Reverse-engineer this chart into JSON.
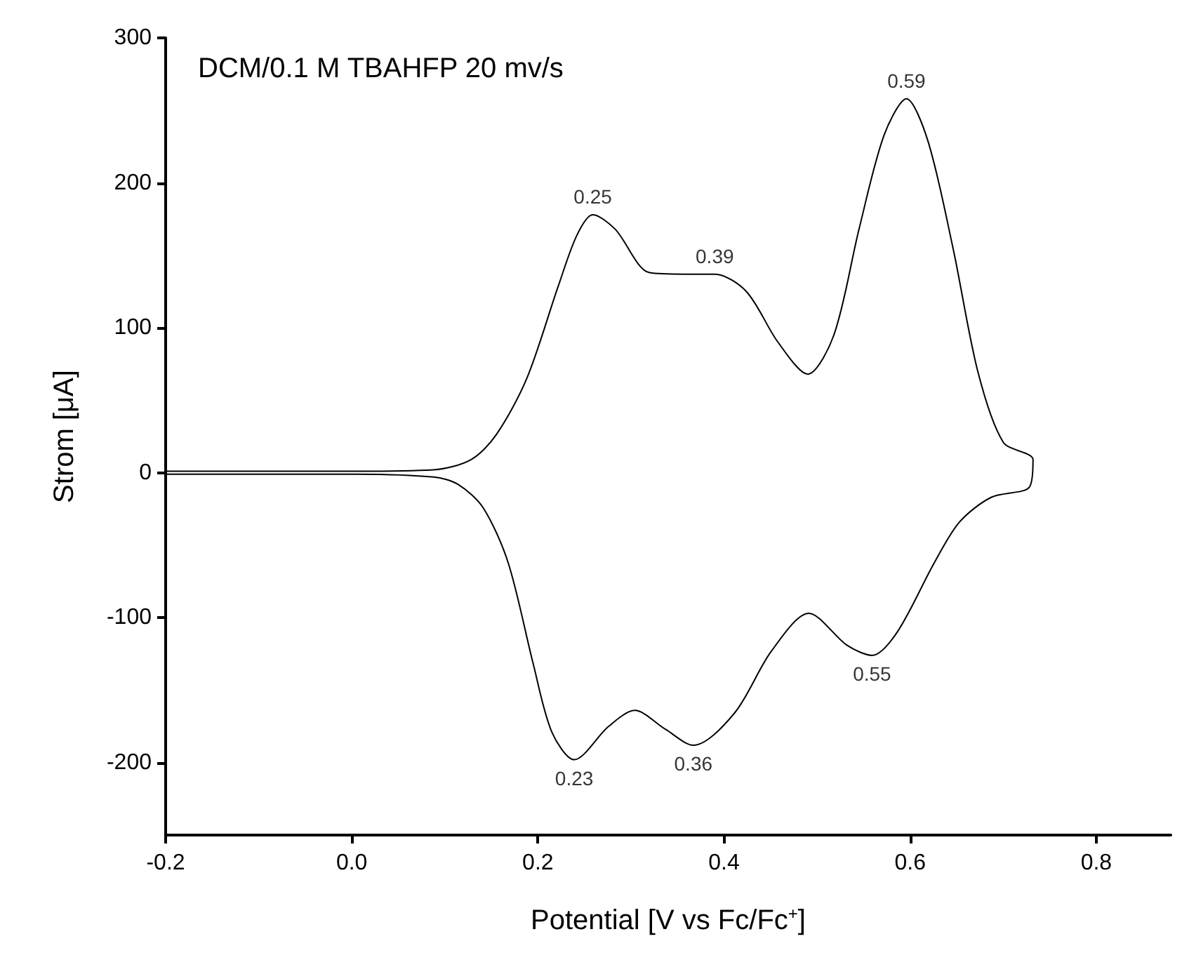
{
  "chart_data": {
    "type": "line",
    "title": "DCM/0.1 M TBAHFP 20 mv/s",
    "xlabel": "Potential [V vs Fc/Fc$^{+}$]",
    "ylabel": "Strom [μA]",
    "series": [
      {
        "color": "#000000",
        "x": [
          -0.2,
          0.0,
          0.088,
          0.128,
          0.155,
          0.188,
          0.222,
          0.242,
          0.259,
          0.283,
          0.32,
          0.357,
          0.39,
          0.424,
          0.458,
          0.49,
          0.518,
          0.545,
          0.572,
          0.596,
          0.619,
          0.646,
          0.673,
          0.7,
          0.732,
          0.728,
          0.687,
          0.653,
          0.626,
          0.586,
          0.559,
          0.532,
          0.491,
          0.451,
          0.411,
          0.367,
          0.337,
          0.304,
          0.276,
          0.239,
          0.215,
          0.195,
          0.168,
          0.141,
          0.114,
          0.088,
          0.0,
          -0.2
        ],
        "values": [
          1,
          1,
          2,
          9,
          26,
          65,
          129,
          164,
          178,
          168,
          138,
          137,
          137,
          125,
          90,
          68,
          95,
          168,
          233,
          258,
          229,
          155,
          69,
          21,
          9,
          -10,
          -17,
          -34,
          -62,
          -110,
          -126,
          -119,
          -97,
          -123,
          -166,
          -188,
          -177,
          -164,
          -175,
          -198,
          -179,
          -132,
          -62,
          -24,
          -8,
          -3,
          -1,
          -1
        ]
      }
    ],
    "annotations": [
      {
        "text": "0.25",
        "x": 0.259,
        "y": 178
      },
      {
        "text": "0.39",
        "x": 0.39,
        "y": 137
      },
      {
        "text": "0.59",
        "x": 0.596,
        "y": 258
      },
      {
        "text": "0.23",
        "x": 0.239,
        "y": -198
      },
      {
        "text": "0.36",
        "x": 0.367,
        "y": -188
      },
      {
        "text": "0.55",
        "x": 0.559,
        "y": -126
      }
    ],
    "xlim": [
      -0.2,
      0.88
    ],
    "xticks": [
      -0.2,
      {
        "value": 0,
        "label": "0.0"
      },
      0.2,
      0.4,
      0.6,
      0.8
    ],
    "ylim": [
      -250,
      300
    ],
    "yticks": [
      -200,
      -100,
      0,
      100,
      200,
      300
    ],
    "grid": false,
    "marker": "none",
    "line_style": "solid"
  }
}
